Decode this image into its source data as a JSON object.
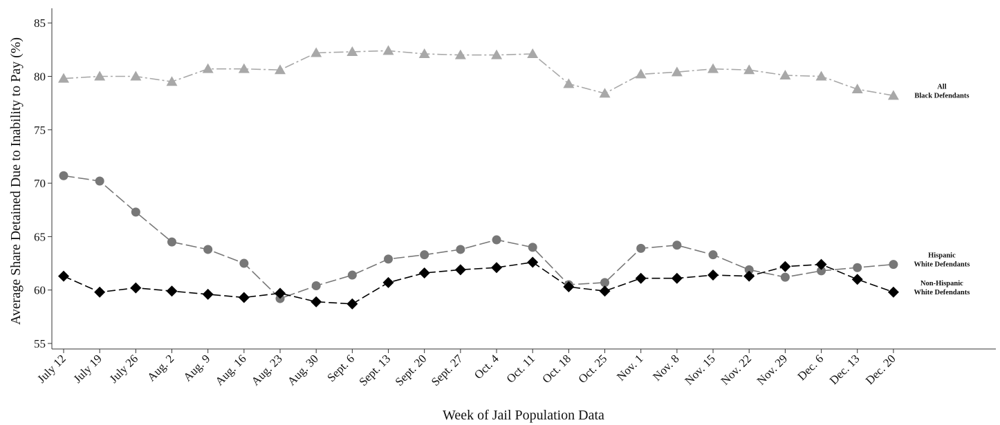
{
  "chart_data": {
    "type": "line",
    "xlabel": "Week of Jail Population Data",
    "ylabel": "Average Share Detained Due to Inability to Pay (%)",
    "ylim": [
      55,
      85
    ],
    "yticks": [
      55,
      60,
      65,
      70,
      75,
      80,
      85
    ],
    "grid": false,
    "categories": [
      "July 12",
      "July 19",
      "July 26",
      "Aug. 2",
      "Aug. 9",
      "Aug. 16",
      "Aug. 23",
      "Aug. 30",
      "Sept. 6",
      "Sept. 13",
      "Sept. 20",
      "Sept. 27",
      "Oct. 4",
      "Oct. 11",
      "Oct. 18",
      "Oct. 25",
      "Nov. 1",
      "Nov. 8",
      "Nov. 15",
      "Nov. 22",
      "Nov. 29",
      "Dec. 6",
      "Dec. 13",
      "Dec. 20"
    ],
    "series": [
      {
        "key": "black",
        "label_lines": [
          "All",
          "Black Defendants"
        ],
        "marker": "triangle",
        "color": "#a8a8a8",
        "dash": "14,4,3,4",
        "values": [
          79.8,
          80.0,
          80.0,
          79.5,
          80.7,
          80.7,
          80.6,
          82.2,
          82.3,
          82.4,
          82.1,
          82.0,
          82.0,
          82.1,
          79.3,
          78.4,
          80.2,
          80.4,
          80.7,
          80.6,
          80.1,
          80.0,
          78.8,
          78.2
        ]
      },
      {
        "key": "hispanic",
        "label_lines": [
          "Hispanic",
          "White Defendants"
        ],
        "marker": "circle",
        "color": "#777777",
        "dash": "16,5",
        "values": [
          70.7,
          70.2,
          67.3,
          64.5,
          63.8,
          62.5,
          59.2,
          60.4,
          61.4,
          62.9,
          63.3,
          63.8,
          64.7,
          64.0,
          60.5,
          60.7,
          63.9,
          64.2,
          63.3,
          61.9,
          61.2,
          61.8,
          62.1,
          62.4
        ]
      },
      {
        "key": "nonhispanic",
        "label_lines": [
          "Non-Hispanic",
          "White Defendants"
        ],
        "marker": "diamond",
        "color": "#000000",
        "dash": "12,5",
        "values": [
          61.3,
          59.8,
          60.2,
          59.9,
          59.6,
          59.3,
          59.7,
          58.9,
          58.7,
          60.7,
          61.6,
          61.9,
          62.1,
          62.6,
          60.3,
          59.9,
          61.1,
          61.1,
          61.4,
          61.3,
          62.2,
          62.4,
          61.0,
          59.8
        ]
      }
    ]
  }
}
